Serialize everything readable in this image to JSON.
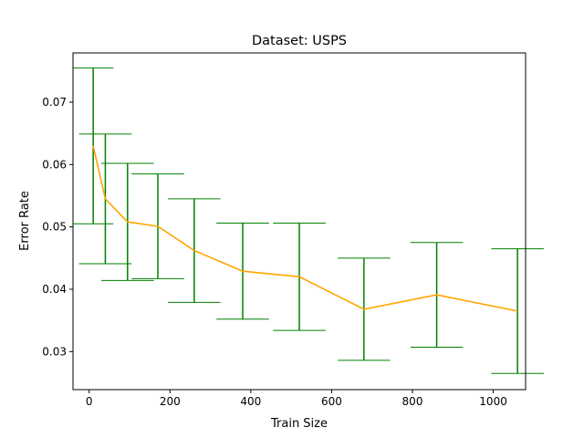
{
  "chart_data": {
    "type": "line",
    "title": "Dataset: USPS",
    "xlabel": "Train Size",
    "ylabel": "Error Rate",
    "xlim": [
      -40,
      1080
    ],
    "ylim": [
      0.0239,
      0.0779
    ],
    "x_ticks": [
      0,
      200,
      400,
      600,
      800,
      1000
    ],
    "y_ticks": [
      0.03,
      0.04,
      0.05,
      0.06,
      0.07
    ],
    "x_tick_labels": [
      "0",
      "200",
      "400",
      "600",
      "800",
      "1000"
    ],
    "y_tick_labels": [
      "0.03",
      "0.04",
      "0.05",
      "0.06",
      "0.07"
    ],
    "grid": false,
    "series": [
      {
        "line_color": "#ffa500",
        "error_color": "#008000",
        "x": [
          10,
          40,
          95,
          170,
          260,
          380,
          520,
          680,
          860,
          1060
        ],
        "y": [
          0.063,
          0.0545,
          0.0508,
          0.0501,
          0.0462,
          0.0429,
          0.042,
          0.0368,
          0.0391,
          0.0365
        ],
        "error": [
          0.0125,
          0.0104,
          0.0094,
          0.0084,
          0.0083,
          0.0077,
          0.0086,
          0.0082,
          0.0084,
          0.01
        ],
        "cap_halfwidth": [
          50,
          65,
          65,
          65,
          65,
          65,
          65,
          65,
          65,
          65
        ]
      }
    ]
  }
}
